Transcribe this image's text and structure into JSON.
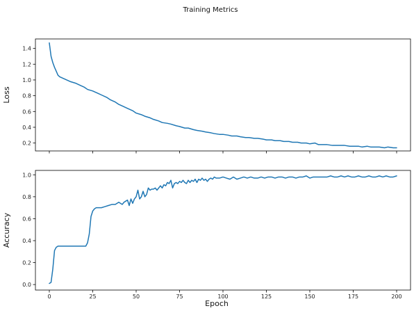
{
  "chart_data": {
    "title": "Training Metrics",
    "xlabel": "Epoch",
    "color": "#1f77b4",
    "xlim": [
      -8,
      208
    ],
    "xticks": [
      0,
      25,
      50,
      75,
      100,
      125,
      150,
      175,
      200
    ],
    "grid": false,
    "panels": [
      {
        "type": "line",
        "ylabel": "Loss",
        "ylim": [
          0.1,
          1.52
        ],
        "yticks": [
          0.2,
          0.4,
          0.6,
          0.8,
          1.0,
          1.2,
          1.4
        ],
        "series": [
          {
            "x": [
              0,
              1,
              2,
              3,
              4,
              5,
              6,
              8,
              10,
              12,
              15,
              18,
              20,
              22,
              25,
              28,
              30,
              33,
              35,
              38,
              40,
              42,
              45,
              48,
              50,
              53,
              55,
              58,
              60,
              63,
              65,
              68,
              70,
              73,
              75,
              78,
              80,
              83,
              85,
              88,
              90,
              93,
              95,
              98,
              100,
              103,
              105,
              108,
              110,
              113,
              115,
              118,
              120,
              123,
              125,
              128,
              130,
              133,
              135,
              138,
              140,
              143,
              145,
              148,
              150,
              153,
              155,
              158,
              160,
              163,
              165,
              168,
              170,
              173,
              175,
              178,
              180,
              183,
              185,
              188,
              190,
              193,
              195,
              198,
              200
            ],
            "y": [
              1.47,
              1.3,
              1.22,
              1.16,
              1.11,
              1.06,
              1.04,
              1.02,
              1.0,
              0.98,
              0.96,
              0.93,
              0.91,
              0.88,
              0.86,
              0.83,
              0.81,
              0.78,
              0.75,
              0.72,
              0.69,
              0.67,
              0.64,
              0.61,
              0.58,
              0.56,
              0.54,
              0.52,
              0.5,
              0.48,
              0.46,
              0.45,
              0.44,
              0.42,
              0.41,
              0.39,
              0.39,
              0.37,
              0.36,
              0.35,
              0.34,
              0.33,
              0.32,
              0.31,
              0.31,
              0.3,
              0.29,
              0.29,
              0.28,
              0.27,
              0.27,
              0.26,
              0.26,
              0.25,
              0.24,
              0.24,
              0.23,
              0.23,
              0.22,
              0.22,
              0.21,
              0.21,
              0.2,
              0.2,
              0.19,
              0.2,
              0.18,
              0.18,
              0.18,
              0.17,
              0.17,
              0.17,
              0.17,
              0.16,
              0.16,
              0.16,
              0.15,
              0.16,
              0.15,
              0.15,
              0.15,
              0.14,
              0.15,
              0.14,
              0.14
            ]
          }
        ]
      },
      {
        "type": "line",
        "ylabel": "Accuracy",
        "ylim": [
          -0.05,
          1.04
        ],
        "yticks": [
          0.0,
          0.2,
          0.4,
          0.6,
          0.8,
          1.0
        ],
        "series": [
          {
            "x": [
              0,
              1,
              2,
              3,
              4,
              5,
              7,
              10,
              13,
              16,
              19,
              20,
              21,
              22,
              23,
              24,
              25,
              26,
              27,
              28,
              30,
              32,
              34,
              36,
              38,
              40,
              41,
              42,
              43,
              44,
              45,
              46,
              47,
              48,
              49,
              50,
              51,
              52,
              53,
              54,
              55,
              56,
              57,
              58,
              59,
              60,
              61,
              62,
              63,
              64,
              65,
              66,
              67,
              68,
              69,
              70,
              71,
              72,
              73,
              74,
              75,
              76,
              77,
              78,
              79,
              80,
              81,
              82,
              83,
              84,
              85,
              86,
              87,
              88,
              89,
              90,
              91,
              92,
              93,
              94,
              95,
              96,
              98,
              100,
              102,
              104,
              106,
              108,
              110,
              112,
              114,
              116,
              118,
              120,
              122,
              124,
              126,
              128,
              130,
              132,
              134,
              136,
              138,
              140,
              142,
              144,
              146,
              148,
              150,
              152,
              154,
              156,
              158,
              160,
              162,
              164,
              166,
              168,
              170,
              172,
              174,
              176,
              178,
              180,
              182,
              184,
              186,
              188,
              190,
              192,
              194,
              196,
              198,
              200
            ],
            "y": [
              0.01,
              0.02,
              0.14,
              0.31,
              0.34,
              0.35,
              0.35,
              0.35,
              0.35,
              0.35,
              0.35,
              0.35,
              0.35,
              0.38,
              0.46,
              0.62,
              0.67,
              0.69,
              0.7,
              0.7,
              0.7,
              0.71,
              0.72,
              0.73,
              0.73,
              0.75,
              0.74,
              0.73,
              0.75,
              0.76,
              0.77,
              0.72,
              0.78,
              0.74,
              0.78,
              0.8,
              0.86,
              0.78,
              0.8,
              0.85,
              0.8,
              0.82,
              0.88,
              0.86,
              0.87,
              0.87,
              0.88,
              0.86,
              0.88,
              0.9,
              0.88,
              0.91,
              0.9,
              0.93,
              0.92,
              0.95,
              0.88,
              0.92,
              0.93,
              0.92,
              0.94,
              0.93,
              0.95,
              0.93,
              0.92,
              0.95,
              0.93,
              0.95,
              0.94,
              0.96,
              0.93,
              0.96,
              0.95,
              0.97,
              0.95,
              0.96,
              0.94,
              0.96,
              0.97,
              0.96,
              0.98,
              0.97,
              0.97,
              0.98,
              0.97,
              0.96,
              0.98,
              0.96,
              0.97,
              0.98,
              0.97,
              0.98,
              0.97,
              0.97,
              0.98,
              0.97,
              0.98,
              0.98,
              0.97,
              0.98,
              0.98,
              0.97,
              0.98,
              0.98,
              0.97,
              0.98,
              0.98,
              0.99,
              0.97,
              0.98,
              0.98,
              0.98,
              0.98,
              0.98,
              0.99,
              0.98,
              0.98,
              0.99,
              0.98,
              0.99,
              0.98,
              0.98,
              0.99,
              0.98,
              0.98,
              0.99,
              0.98,
              0.98,
              0.99,
              0.98,
              0.99,
              0.98,
              0.98,
              0.99
            ]
          }
        ]
      }
    ]
  }
}
